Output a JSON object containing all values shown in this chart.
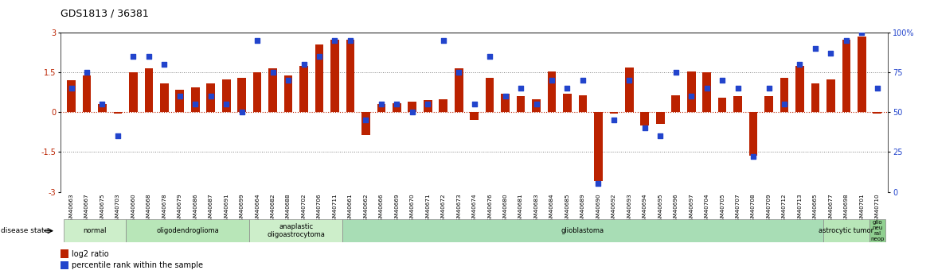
{
  "title": "GDS1813 / 36381",
  "samples": [
    "GSM40663",
    "GSM40667",
    "GSM40675",
    "GSM40703",
    "GSM40660",
    "GSM40668",
    "GSM40678",
    "GSM40679",
    "GSM40686",
    "GSM40687",
    "GSM40691",
    "GSM40699",
    "GSM40664",
    "GSM40682",
    "GSM40688",
    "GSM40702",
    "GSM40706",
    "GSM40711",
    "GSM40661",
    "GSM40662",
    "GSM40666",
    "GSM40669",
    "GSM40670",
    "GSM40671",
    "GSM40672",
    "GSM40673",
    "GSM40674",
    "GSM40676",
    "GSM40680",
    "GSM40681",
    "GSM40683",
    "GSM40684",
    "GSM40685",
    "GSM40689",
    "GSM40690",
    "GSM40692",
    "GSM40693",
    "GSM40694",
    "GSM40695",
    "GSM40696",
    "GSM40697",
    "GSM40704",
    "GSM40705",
    "GSM40707",
    "GSM40708",
    "GSM40709",
    "GSM40712",
    "GSM40713",
    "GSM40665",
    "GSM40677",
    "GSM40698",
    "GSM40701",
    "GSM40710"
  ],
  "log2_ratio": [
    1.2,
    1.4,
    0.3,
    -0.05,
    1.5,
    1.65,
    1.1,
    0.85,
    0.95,
    1.1,
    1.25,
    1.3,
    1.5,
    1.65,
    1.4,
    1.75,
    2.55,
    2.75,
    2.75,
    -0.85,
    0.3,
    0.35,
    0.4,
    0.45,
    0.5,
    1.65,
    -0.3,
    1.3,
    0.7,
    0.6,
    0.5,
    1.55,
    0.7,
    0.65,
    -2.6,
    -0.05,
    1.7,
    -0.5,
    -0.45,
    0.65,
    1.55,
    1.5,
    0.55,
    0.6,
    -1.65,
    0.6,
    1.3,
    1.75,
    1.1,
    1.25,
    2.75,
    2.85,
    -0.05
  ],
  "percentile": [
    65,
    75,
    55,
    35,
    85,
    85,
    80,
    60,
    55,
    60,
    55,
    50,
    95,
    75,
    70,
    80,
    85,
    95,
    95,
    45,
    55,
    55,
    50,
    55,
    95,
    75,
    55,
    85,
    60,
    65,
    55,
    70,
    65,
    70,
    5,
    45,
    70,
    40,
    35,
    75,
    60,
    65,
    70,
    65,
    22,
    65,
    55,
    80,
    90,
    87,
    95,
    100,
    65
  ],
  "disease_groups": [
    {
      "label": "normal",
      "start": 0,
      "end": 4,
      "color": "#cdeeca"
    },
    {
      "label": "oligodendroglioma",
      "start": 4,
      "end": 12,
      "color": "#b8e6b8"
    },
    {
      "label": "anaplastic\noligoastrocytoma",
      "start": 12,
      "end": 18,
      "color": "#cdeeca"
    },
    {
      "label": "glioblastoma",
      "start": 18,
      "end": 49,
      "color": "#a8ddb5"
    },
    {
      "label": "astrocytic tumor",
      "start": 49,
      "end": 52,
      "color": "#b8e6b8"
    },
    {
      "label": "glio\nneu\nral\nneop",
      "start": 52,
      "end": 53,
      "color": "#90d090"
    }
  ],
  "bar_color": "#bb2200",
  "dot_color": "#2244cc",
  "ylim_left": [
    -3,
    3
  ],
  "ylim_right": [
    0,
    100
  ],
  "yticks_left": [
    -3,
    -1.5,
    0,
    1.5,
    3
  ],
  "yticks_right": [
    0,
    25,
    50,
    75,
    100
  ],
  "background_color": "#ffffff"
}
